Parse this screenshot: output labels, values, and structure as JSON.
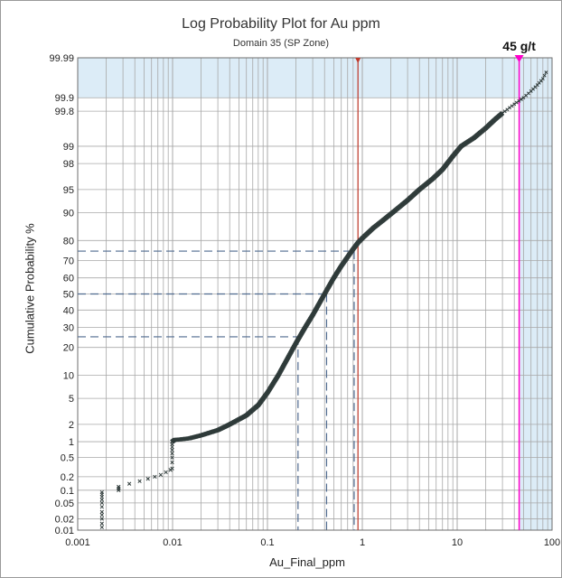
{
  "chart_data": {
    "type": "scatter",
    "title": "Log Probability Plot for Au ppm",
    "subtitle": "Domain 35 (SP Zone)",
    "xlabel": "Au_Final_ppm",
    "ylabel": "Cumulative Probability %",
    "x_scale": "log",
    "y_scale": "probability",
    "xlim": [
      0.001,
      100
    ],
    "ylim": [
      0.01,
      99.99
    ],
    "x_ticks": [
      "0.001",
      "0.01",
      "0.1",
      "1",
      "10",
      "100"
    ],
    "y_ticks": [
      "0.01",
      "0.02",
      "0.05",
      "0.1",
      "0.2",
      "0.5",
      "1",
      "2",
      "5",
      "10",
      "20",
      "30",
      "40",
      "50",
      "60",
      "70",
      "80",
      "90",
      "95",
      "98",
      "99",
      "99.8",
      "99.9",
      "99.99"
    ],
    "grid": true,
    "cutoff_label": "45 g/t",
    "cutoff_value": 45,
    "reference_line_x": 0.9,
    "percentile_guides": [
      {
        "percentile": 25,
        "value": 0.21
      },
      {
        "percentile": 50,
        "value": 0.42
      },
      {
        "percentile": 75,
        "value": 0.82
      }
    ],
    "series": [
      {
        "points": [
          [
            0.0018,
            0.012
          ],
          [
            0.0018,
            0.015
          ],
          [
            0.0018,
            0.02
          ],
          [
            0.0018,
            0.025
          ],
          [
            0.0018,
            0.03
          ],
          [
            0.0018,
            0.04
          ],
          [
            0.0018,
            0.05
          ],
          [
            0.0018,
            0.06
          ],
          [
            0.0018,
            0.07
          ],
          [
            0.0018,
            0.08
          ],
          [
            0.0018,
            0.09
          ],
          [
            0.0027,
            0.1
          ],
          [
            0.0027,
            0.11
          ],
          [
            0.0027,
            0.12
          ],
          [
            0.0035,
            0.14
          ],
          [
            0.0045,
            0.16
          ],
          [
            0.0055,
            0.18
          ],
          [
            0.0065,
            0.2
          ],
          [
            0.0075,
            0.22
          ],
          [
            0.0085,
            0.25
          ],
          [
            0.0095,
            0.28
          ],
          [
            0.0099,
            0.3
          ],
          [
            0.0099,
            0.4
          ],
          [
            0.0099,
            0.5
          ],
          [
            0.0099,
            0.6
          ],
          [
            0.0099,
            0.7
          ],
          [
            0.0099,
            0.8
          ],
          [
            0.0099,
            0.9
          ],
          [
            0.0099,
            1.0
          ],
          [
            0.0105,
            1.08
          ],
          [
            0.012,
            1.1
          ],
          [
            0.015,
            1.15
          ],
          [
            0.02,
            1.3
          ],
          [
            0.03,
            1.6
          ],
          [
            0.04,
            2.0
          ],
          [
            0.06,
            2.8
          ],
          [
            0.08,
            4.0
          ],
          [
            0.1,
            6.0
          ],
          [
            0.13,
            10
          ],
          [
            0.16,
            15
          ],
          [
            0.2,
            22
          ],
          [
            0.25,
            30
          ],
          [
            0.3,
            37
          ],
          [
            0.4,
            50
          ],
          [
            0.5,
            60
          ],
          [
            0.6,
            67
          ],
          [
            0.7,
            72
          ],
          [
            0.8,
            76
          ],
          [
            0.9,
            79
          ],
          [
            1.0,
            81
          ],
          [
            1.3,
            85
          ],
          [
            1.7,
            88
          ],
          [
            2.2,
            90.5
          ],
          [
            3,
            93
          ],
          [
            4,
            95
          ],
          [
            5.5,
            96.5
          ],
          [
            7,
            97.5
          ],
          [
            9,
            98.5
          ],
          [
            11,
            99
          ],
          [
            15,
            99.3
          ],
          [
            20,
            99.55
          ],
          [
            25,
            99.7
          ],
          [
            30,
            99.78
          ],
          [
            40,
            99.86
          ],
          [
            50,
            99.9
          ],
          [
            60,
            99.93
          ],
          [
            70,
            99.95
          ],
          [
            80,
            99.965
          ],
          [
            90,
            99.98
          ]
        ]
      }
    ],
    "colors": {
      "points": "#2f3b3a",
      "grid": "#a8a8a8",
      "guides": "#4f6a8f",
      "reference": "#c0392b",
      "cutoff": "#ff00cc",
      "shade": "#dcecf7"
    }
  }
}
